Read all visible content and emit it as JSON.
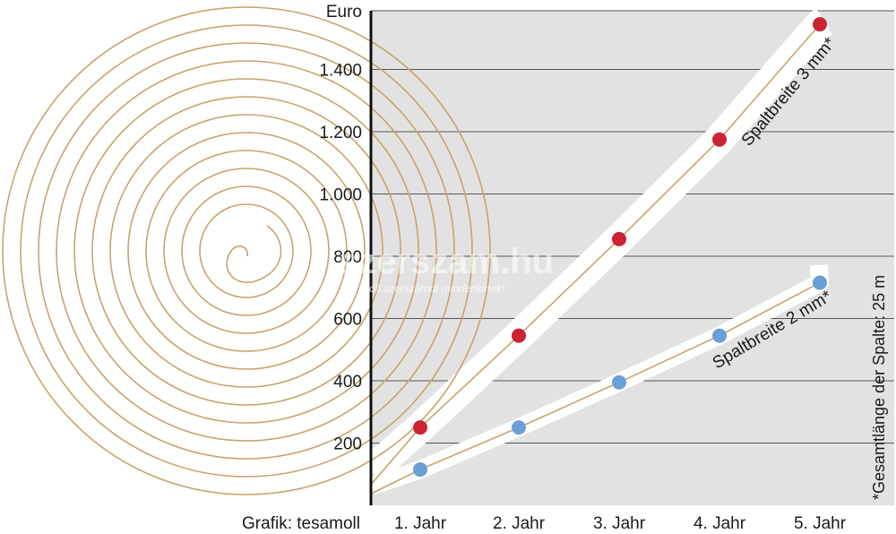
{
  "chart_data": {
    "type": "line",
    "ylabel": "Euro",
    "ylim": [
      0,
      1550
    ],
    "yticks": [
      200,
      400,
      600,
      800,
      1000,
      1200,
      1400
    ],
    "ytick_labels": [
      "200",
      "400",
      "600",
      "800",
      "1.000",
      "1.200",
      "1.400"
    ],
    "categories": [
      "1. Jahr",
      "2. Jahr",
      "3. Jahr",
      "4. Jahr",
      "5. Jahr"
    ],
    "series": [
      {
        "name": "Spaltbreite 3 mm*",
        "color": "#cc2233",
        "values": [
          250,
          545,
          855,
          1175,
          1545
        ]
      },
      {
        "name": "Spaltbreite 2 mm*",
        "color": "#6a9fd8",
        "values": [
          115,
          250,
          395,
          545,
          715
        ]
      }
    ],
    "grid": true,
    "background_color": "#e2e2e2",
    "spiral_color": "#c9a36a",
    "footnote": "*Gesamtlänge der Spalte: 25 m",
    "credit": "Grafik: tesamoll",
    "watermark": {
      "main": "szerszam.hu",
      "sub": "Profi szerszámot mindenkinek!"
    }
  }
}
